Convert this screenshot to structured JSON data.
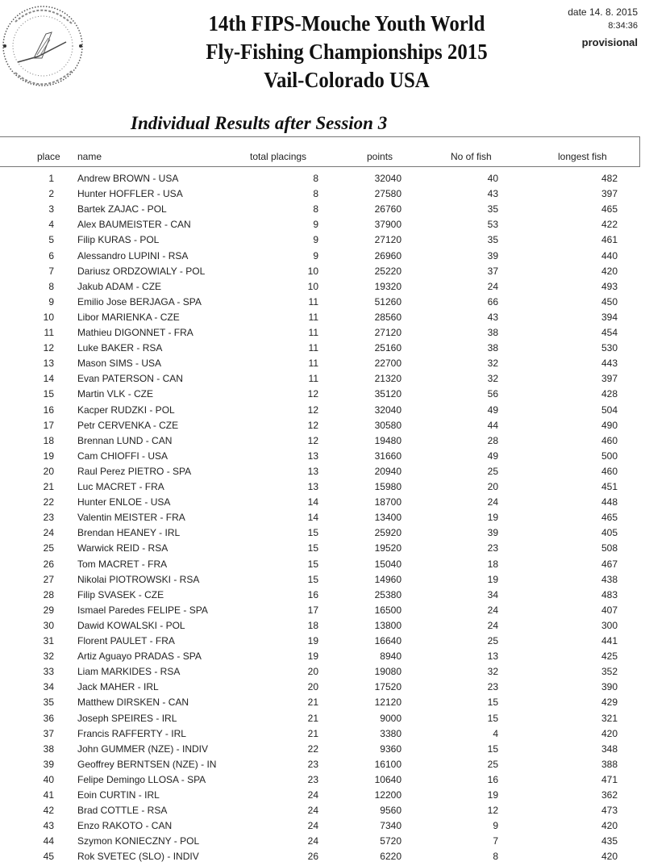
{
  "header": {
    "title_lines": [
      "14th FIPS-Mouche Youth World",
      "Fly-Fishing Championships 2015",
      "Vail-Colorado USA"
    ],
    "subtitle": "Individual Results after Session 3",
    "date": "date 14. 8. 2015",
    "time": "8:34:36",
    "status": "provisional",
    "seal_text": "Fédération Internationale de Pêche Sportive Mouche"
  },
  "columns": {
    "place": "place",
    "name": "name",
    "total_placings": "total placings",
    "points": "points",
    "no_of_fish": "No of fish",
    "longest_fish": "longest fish"
  },
  "rows": [
    [
      "1",
      "Andrew BROWN - USA",
      "8",
      "32040",
      "40",
      "482"
    ],
    [
      "2",
      "Hunter HOFFLER - USA",
      "8",
      "27580",
      "43",
      "397"
    ],
    [
      "3",
      "Bartek ZAJAC - POL",
      "8",
      "26760",
      "35",
      "465"
    ],
    [
      "4",
      "Alex BAUMEISTER - CAN",
      "9",
      "37900",
      "53",
      "422"
    ],
    [
      "5",
      "Filip KURAS - POL",
      "9",
      "27120",
      "35",
      "461"
    ],
    [
      "6",
      "Alessandro LUPINI - RSA",
      "9",
      "26960",
      "39",
      "440"
    ],
    [
      "7",
      "Dariusz ORDZOWIALY - POL",
      "10",
      "25220",
      "37",
      "420"
    ],
    [
      "8",
      "Jakub ADAM - CZE",
      "10",
      "19320",
      "24",
      "493"
    ],
    [
      "9",
      "Emilio Jose BERJAGA - SPA",
      "11",
      "51260",
      "66",
      "450"
    ],
    [
      "10",
      "Libor MARIENKA - CZE",
      "11",
      "28560",
      "43",
      "394"
    ],
    [
      "11",
      "Mathieu DIGONNET - FRA",
      "11",
      "27120",
      "38",
      "454"
    ],
    [
      "12",
      "Luke BAKER - RSA",
      "11",
      "25160",
      "38",
      "530"
    ],
    [
      "13",
      "Mason SIMS - USA",
      "11",
      "22700",
      "32",
      "443"
    ],
    [
      "14",
      "Evan PATERSON - CAN",
      "11",
      "21320",
      "32",
      "397"
    ],
    [
      "15",
      "Martin VLK - CZE",
      "12",
      "35120",
      "56",
      "428"
    ],
    [
      "16",
      "Kacper RUDZKI - POL",
      "12",
      "32040",
      "49",
      "504"
    ],
    [
      "17",
      "Petr CERVENKA - CZE",
      "12",
      "30580",
      "44",
      "490"
    ],
    [
      "18",
      "Brennan LUND - CAN",
      "12",
      "19480",
      "28",
      "460"
    ],
    [
      "19",
      "Cam CHIOFFI - USA",
      "13",
      "31660",
      "49",
      "500"
    ],
    [
      "20",
      "Raul Perez PIETRO - SPA",
      "13",
      "20940",
      "25",
      "460"
    ],
    [
      "21",
      "Luc MACRET - FRA",
      "13",
      "15980",
      "20",
      "451"
    ],
    [
      "22",
      "Hunter ENLOE - USA",
      "14",
      "18700",
      "24",
      "448"
    ],
    [
      "23",
      "Valentin MEISTER - FRA",
      "14",
      "13400",
      "19",
      "465"
    ],
    [
      "24",
      "Brendan HEANEY - IRL",
      "15",
      "25920",
      "39",
      "405"
    ],
    [
      "25",
      "Warwick REID - RSA",
      "15",
      "19520",
      "23",
      "508"
    ],
    [
      "26",
      "Tom MACRET - FRA",
      "15",
      "15040",
      "18",
      "467"
    ],
    [
      "27",
      "Nikolai PIOTROWSKI - RSA",
      "15",
      "14960",
      "19",
      "438"
    ],
    [
      "28",
      "Filip SVASEK - CZE",
      "16",
      "25380",
      "34",
      "483"
    ],
    [
      "29",
      "Ismael Paredes FELIPE - SPA",
      "17",
      "16500",
      "24",
      "407"
    ],
    [
      "30",
      "Dawid KOWALSKI - POL",
      "18",
      "13800",
      "24",
      "300"
    ],
    [
      "31",
      "Florent PAULET - FRA",
      "19",
      "16640",
      "25",
      "441"
    ],
    [
      "32",
      "Artiz Aguayo PRADAS - SPA",
      "19",
      "8940",
      "13",
      "425"
    ],
    [
      "33",
      "Liam MARKIDES - RSA",
      "20",
      "19080",
      "32",
      "352"
    ],
    [
      "34",
      "Jack MAHER - IRL",
      "20",
      "17520",
      "23",
      "390"
    ],
    [
      "35",
      "Matthew DIRSKEN - CAN",
      "21",
      "12120",
      "15",
      "429"
    ],
    [
      "36",
      "Joseph SPEIRES - IRL",
      "21",
      "9000",
      "15",
      "321"
    ],
    [
      "37",
      "Francis RAFFERTY - IRL",
      "21",
      "3380",
      "4",
      "420"
    ],
    [
      "38",
      "John GUMMER (NZE) - INDIV",
      "22",
      "9360",
      "15",
      "348"
    ],
    [
      "39",
      "Geoffrey BERNTSEN (NZE) - IN",
      "23",
      "16100",
      "25",
      "388"
    ],
    [
      "40",
      "Felipe Demingo LLOSA - SPA",
      "23",
      "10640",
      "16",
      "471"
    ],
    [
      "41",
      "Eoin CURTIN - IRL",
      "24",
      "12200",
      "19",
      "362"
    ],
    [
      "42",
      "Brad COTTLE - RSA",
      "24",
      "9560",
      "12",
      "473"
    ],
    [
      "43",
      "Enzo RAKOTO - CAN",
      "24",
      "7340",
      "9",
      "420"
    ],
    [
      "44",
      "Szymon KONIECZNY - POL",
      "24",
      "5720",
      "7",
      "435"
    ],
    [
      "45",
      "Rok SVETEC (SLO) - INDIV",
      "26",
      "6220",
      "8",
      "420"
    ]
  ]
}
